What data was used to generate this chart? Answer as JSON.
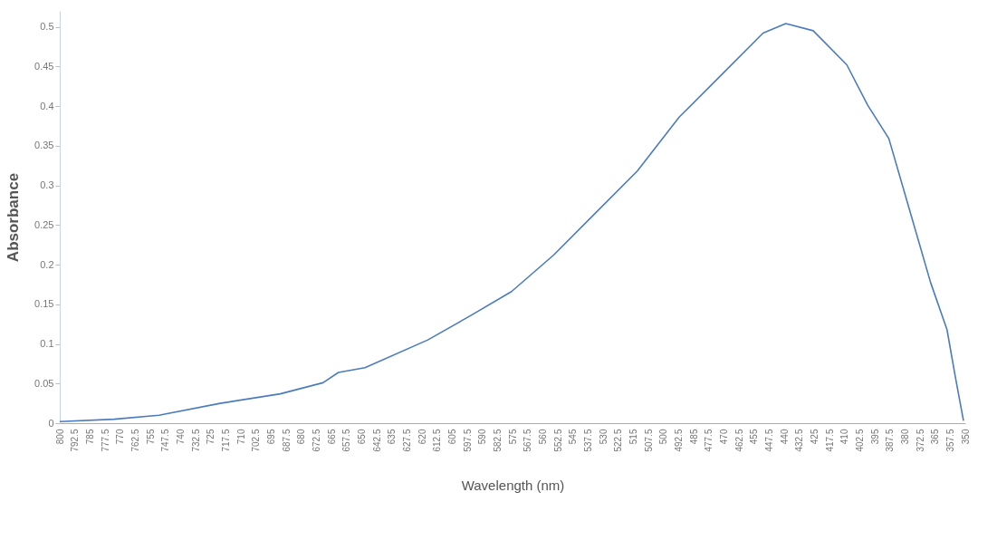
{
  "chart_data": {
    "type": "line",
    "xlabel": "Wavelength (nm)",
    "ylabel": "Absorbance",
    "x": [
      800,
      773,
      750.7,
      720.3,
      690.4,
      669.2,
      661.5,
      648.3,
      617.1,
      596.3,
      575.5,
      554.6,
      533.8,
      513.0,
      492.2,
      471.3,
      450.5,
      439.2,
      425.6,
      408.9,
      398.5,
      388.0,
      377.6,
      367.2,
      359.1,
      355.0,
      350.9
    ],
    "series": [
      {
        "color": "#4a7bbf",
        "values": [
          0.002,
          0.005,
          0.01,
          0.025,
          0.037,
          0.051,
          0.064,
          0.07,
          0.105,
          0.135,
          0.166,
          0.212,
          0.265,
          0.318,
          0.386,
          0.439,
          0.492,
          0.504,
          0.495,
          0.452,
          0.401,
          0.359,
          0.268,
          0.177,
          0.118,
          0.059,
          0.003
        ]
      }
    ],
    "xlim": [
      800,
      350
    ],
    "xticks": [
      800,
      792.5,
      785,
      777.5,
      770,
      762.5,
      755,
      747.5,
      740,
      732.5,
      725,
      717.5,
      710,
      702.5,
      695,
      687.5,
      680,
      672.5,
      665,
      657.5,
      650,
      642.5,
      635,
      627.5,
      620,
      612.5,
      605,
      597.5,
      590,
      582.5,
      575,
      567.5,
      560,
      552.5,
      545,
      537.5,
      530,
      522.5,
      515,
      507.5,
      500,
      492.5,
      485,
      477.5,
      470,
      462.5,
      455,
      447.5,
      440,
      432.5,
      425,
      417.5,
      410,
      402.5,
      395,
      387.5,
      380,
      372.5,
      365,
      357.5,
      350
    ],
    "ylim": [
      0,
      0.52
    ],
    "yticks": [
      0,
      0.05,
      0.1,
      0.15,
      0.2,
      0.25,
      0.3,
      0.35,
      0.4,
      0.45,
      0.5
    ],
    "grid": false,
    "marker": "none",
    "line_style": "solid"
  }
}
